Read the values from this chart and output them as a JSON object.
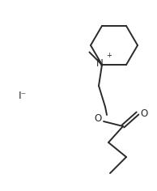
{
  "bg_color": "#ffffff",
  "line_color": "#2a2a2a",
  "line_width": 1.4,
  "font_size": 8.5,
  "font_size_sup": 6.0,
  "iodide": "I⁻",
  "nitrogen": "N",
  "oxygen": "O",
  "plus": "+"
}
